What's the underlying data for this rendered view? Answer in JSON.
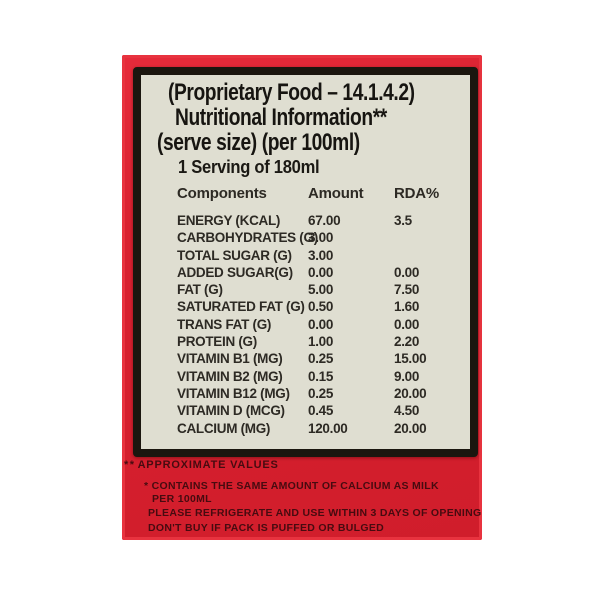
{
  "colors": {
    "package_red": "#d92130",
    "package_red_highlight": "#e8333f",
    "label_background": "#dfded1",
    "label_border": "#1b160f",
    "text_dark": "#1b1914",
    "footnote_maroon": "#470b10"
  },
  "label": {
    "title_line1": "(Proprietary Food – 14.1.4.2)",
    "title_line2": "Nutritional Information**",
    "title_line3": "(serve size) (per 100ml)",
    "serving": "1 Serving of 180ml",
    "table": {
      "headers": [
        "Components",
        "Amount",
        "RDA%"
      ],
      "rows": [
        {
          "component": "ENERGY (KCAL)",
          "amount": "67.00",
          "rda": "3.5"
        },
        {
          "component": "CARBOHYDRATES (G)",
          "amount": "3.00",
          "rda": ""
        },
        {
          "component": "TOTAL SUGAR (G)",
          "amount": "3.00",
          "rda": ""
        },
        {
          "component": "ADDED SUGAR(G)",
          "amount": "0.00",
          "rda": "0.00"
        },
        {
          "component": "FAT (G)",
          "amount": "5.00",
          "rda": "7.50"
        },
        {
          "component": "SATURATED FAT (G)",
          "amount": "0.50",
          "rda": "1.60"
        },
        {
          "component": "TRANS FAT (G)",
          "amount": "0.00",
          "rda": "0.00"
        },
        {
          "component": "PROTEIN (G)",
          "amount": "1.00",
          "rda": "2.20"
        },
        {
          "component": "VITAMIN B1 (MG)",
          "amount": "0.25",
          "rda": "15.00"
        },
        {
          "component": "VITAMIN B2 (MG)",
          "amount": "0.15",
          "rda": "9.00"
        },
        {
          "component": "VITAMIN B12 (MG)",
          "amount": "0.25",
          "rda": "20.00"
        },
        {
          "component": "VITAMIN D (MCG)",
          "amount": "0.45",
          "rda": "4.50"
        },
        {
          "component": "CALCIUM (MG)",
          "amount": "120.00",
          "rda": "20.00"
        }
      ]
    }
  },
  "footnotes": {
    "line1_prefix": "**",
    "line1": "APPROXIMATE VALUES",
    "line2_prefix": "*",
    "line2": "CONTAINS THE SAME AMOUNT OF CALCIUM AS MILK",
    "line3": "PER 100ML",
    "line4": "PLEASE REFRIGERATE AND USE WITHIN 3 DAYS OF OPENING",
    "line5": "DON'T BUY IF PACK IS PUFFED OR BULGED"
  }
}
